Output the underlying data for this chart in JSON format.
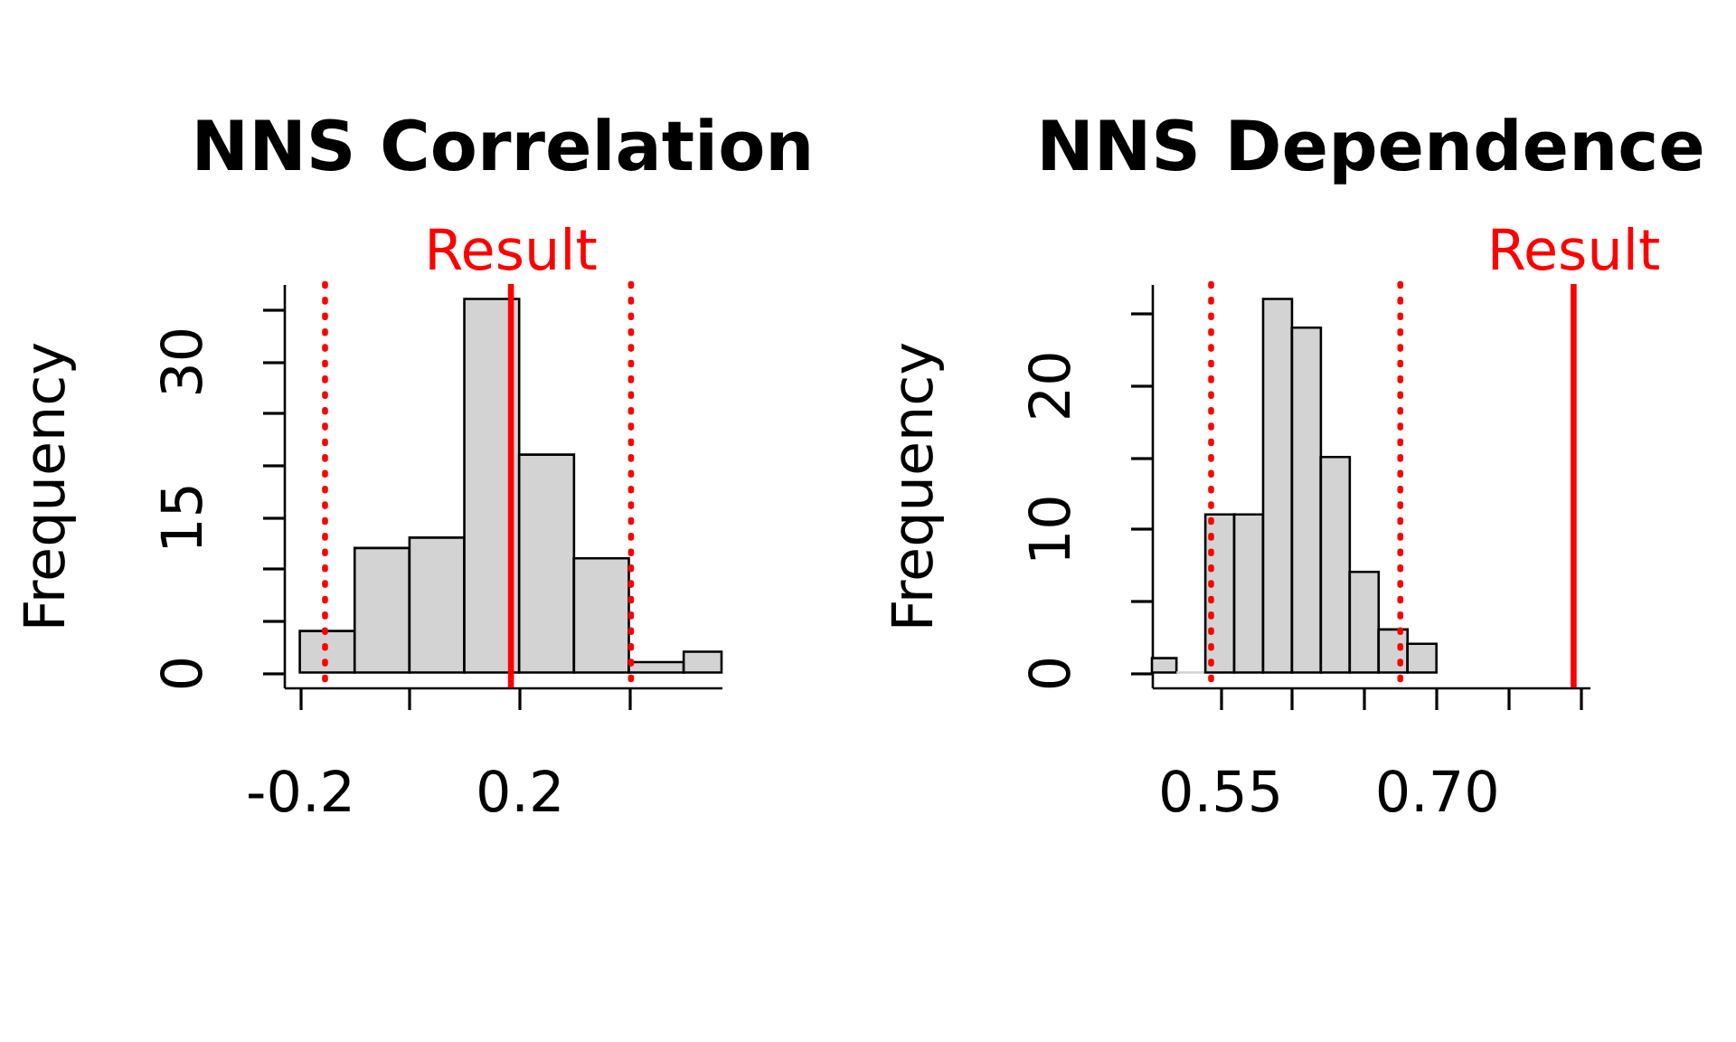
{
  "chart_data": [
    {
      "type": "histogram",
      "title": "NNS Correlation",
      "ylabel": "Frequency",
      "bins": [
        -0.2,
        -0.1,
        0,
        0.1,
        0.2,
        0.3,
        0.4,
        0.5,
        0.569
      ],
      "values": [
        4,
        12,
        13,
        36,
        21,
        11,
        1,
        2
      ],
      "color": "#d3d3d3",
      "xlim": [
        -0.229,
        0.569
      ],
      "ylim": [
        -1.44,
        37.44
      ],
      "xticks": [
        -0.2,
        {
          "value": 0,
          "label": null
        },
        0.2,
        {
          "value": 0.4,
          "label": null
        }
      ],
      "yticks": [
        0,
        {
          "value": 5,
          "label": null
        },
        {
          "value": 10,
          "label": null
        },
        15,
        {
          "value": 20,
          "label": null
        },
        {
          "value": 25,
          "label": null
        },
        30,
        {
          "value": 35,
          "label": null
        }
      ],
      "ref_lines": [
        {
          "axis": "x",
          "value": 0.185,
          "label": "Result",
          "color": "#ff0000"
        },
        {
          "axis": "x",
          "value": -0.154,
          "color": "#ff0000",
          "line_style": "dotted"
        },
        {
          "axis": "x",
          "value": 0.404,
          "color": "#ff0000",
          "line_style": "dotted"
        }
      ]
    },
    {
      "type": "histogram",
      "title": "NNS Dependence",
      "ylabel": "Frequency",
      "bins": [
        0.503,
        0.52,
        0.54,
        0.56,
        0.58,
        0.6,
        0.62,
        0.64,
        0.66,
        0.68,
        0.7
      ],
      "values": [
        1,
        0,
        11,
        11,
        26,
        24,
        15,
        7,
        3,
        2
      ],
      "color": "#d3d3d3",
      "xlim": [
        0.503,
        0.806
      ],
      "ylim": [
        -1.04,
        27.04
      ],
      "xticks": [
        0.55,
        {
          "value": 0.6,
          "label": null
        },
        {
          "value": 0.65,
          "label": null
        },
        {
          "value": 0.7,
          "label": "0.70"
        },
        {
          "value": 0.75,
          "label": null
        },
        {
          "value": 0.8,
          "label": null
        }
      ],
      "yticks": [
        0,
        {
          "value": 5,
          "label": null
        },
        10,
        {
          "value": 15,
          "label": null
        },
        20,
        {
          "value": 25,
          "label": null
        }
      ],
      "ref_lines": [
        {
          "axis": "x",
          "value": 0.795,
          "label": "Result",
          "color": "#ff0000"
        },
        {
          "axis": "x",
          "value": 0.544,
          "color": "#ff0000",
          "line_style": "dotted"
        },
        {
          "axis": "x",
          "value": 0.675,
          "color": "#ff0000",
          "line_style": "dotted"
        }
      ]
    }
  ]
}
